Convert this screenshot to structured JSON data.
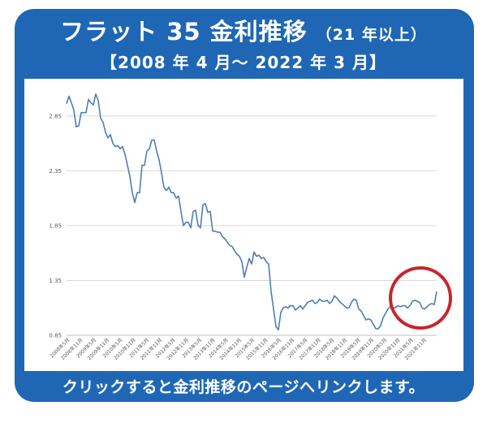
{
  "header": {
    "title_main": "フラット 35 金利推移",
    "title_sub": "（21 年以上）",
    "period": "【2008 年 4 月～ 2022 年 3 月】"
  },
  "footer": {
    "link_text": "クリックすると金利推移のページへリンクします。"
  },
  "colors": {
    "frame": "#1f67b5",
    "line": "#4f7db4",
    "highlight_circle": "#c8252c",
    "grid": "#d9d9d9"
  },
  "chart_data": {
    "type": "line",
    "title": "",
    "xlabel": "",
    "ylabel": "",
    "ylim": [
      0.85,
      3.1
    ],
    "yticks": [
      0.85,
      1.35,
      1.85,
      2.35,
      2.85
    ],
    "grid": true,
    "xticks": [
      "2008年5月",
      "2008年11月",
      "2009年5月",
      "2009年11月",
      "2010年5月",
      "2010年11月",
      "2011年5月",
      "2011年11月",
      "2012年5月",
      "2012年11月",
      "2013年5月",
      "2013年11月",
      "2014年5月",
      "2014年11月",
      "2015年5月",
      "2015年11月",
      "2016年5月",
      "2016年11月",
      "2017年5月",
      "2017年11月",
      "2018年5月",
      "2018年11月",
      "2019年5月",
      "2019年11月",
      "2020年5月",
      "2020年11月",
      "2021年5月",
      "2021年11月"
    ],
    "series": [
      {
        "values": [
          2.96,
          3.03,
          2.97,
          2.9,
          2.75,
          2.76,
          2.88,
          2.88,
          2.88,
          3.0,
          2.97,
          2.95,
          3.05,
          2.99,
          2.83,
          2.79,
          2.7,
          2.65,
          2.68,
          2.6,
          2.57,
          2.58,
          2.55,
          2.57,
          2.5,
          2.4,
          2.3,
          2.15,
          2.06,
          2.15,
          2.15,
          2.4,
          2.4,
          2.53,
          2.55,
          2.63,
          2.63,
          2.53,
          2.45,
          2.33,
          2.2,
          2.17,
          2.2,
          2.15,
          2.15,
          2.1,
          2.12,
          1.98,
          1.85,
          1.88,
          1.88,
          1.83,
          1.98,
          1.99,
          1.85,
          1.83,
          2.04,
          2.05,
          1.97,
          1.98,
          1.8,
          1.8,
          1.79,
          1.79,
          1.75,
          1.73,
          1.7,
          1.67,
          1.66,
          1.62,
          1.59,
          1.57,
          1.52,
          1.38,
          1.47,
          1.55,
          1.5,
          1.61,
          1.57,
          1.58,
          1.55,
          1.56,
          1.52,
          1.5,
          1.25,
          1.09,
          0.93,
          0.9,
          1.06,
          1.1,
          1.11,
          1.1,
          1.12,
          1.12,
          1.08,
          1.1,
          1.12,
          1.09,
          1.12,
          1.15,
          1.16,
          1.17,
          1.14,
          1.15,
          1.18,
          1.16,
          1.16,
          1.17,
          1.14,
          1.16,
          1.21,
          1.19,
          1.16,
          1.14,
          1.12,
          1.1,
          1.1,
          1.15,
          1.18,
          1.17,
          1.09,
          1.07,
          1.03,
          0.99,
          1.0,
          0.99,
          0.95,
          0.91,
          0.91,
          0.94,
          1.01,
          1.05,
          1.09,
          1.11,
          1.1,
          1.1,
          1.12,
          1.11,
          1.12,
          1.12,
          1.1,
          1.12,
          1.16,
          1.17,
          1.16,
          1.15,
          1.1,
          1.09,
          1.11,
          1.13,
          1.14,
          1.13,
          1.25
        ]
      }
    ]
  }
}
